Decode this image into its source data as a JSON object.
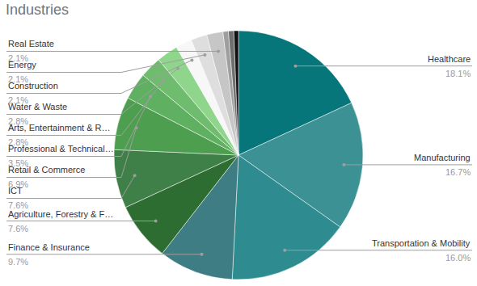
{
  "chart_data": {
    "type": "pie",
    "title": "Industries",
    "categories": [
      "Healthcare",
      "Manufacturing",
      "Transportation & Mobility",
      "Finance & Insurance",
      "Agriculture, Forestry & F…",
      "ICT",
      "Retail & Commerce",
      "Professional & Technical…",
      "Arts, Entertainment & R…",
      "Water & Waste",
      "Construction",
      "Energy",
      "Real Estate",
      null,
      null,
      null
    ],
    "values": [
      18.1,
      16.7,
      16.0,
      9.7,
      7.6,
      7.6,
      6.9,
      3.5,
      2.8,
      2.8,
      2.1,
      2.1,
      2.1,
      0.7,
      0.7,
      0.6
    ],
    "value_labels": [
      "18.1%",
      "16.7%",
      "16.0%",
      "9.7%",
      "7.6%",
      "7.6%",
      "6.9%",
      "3.5%",
      "2.8%",
      "2.8%",
      "2.1%",
      "2.1%",
      "2.1%",
      null,
      null,
      null
    ],
    "colors": [
      "#07767b",
      "#3b9194",
      "#2e8c90",
      "#3f7d84",
      "#2e6d32",
      "#3f7f48",
      "#4e9e50",
      "#5fb061",
      "#6fbc6f",
      "#8fd68c",
      "#f7f7f7",
      "#dedede",
      "#c6c6c6",
      "#9e9e9e",
      "#6e6e6e",
      "#111111"
    ],
    "data_labels": true
  }
}
